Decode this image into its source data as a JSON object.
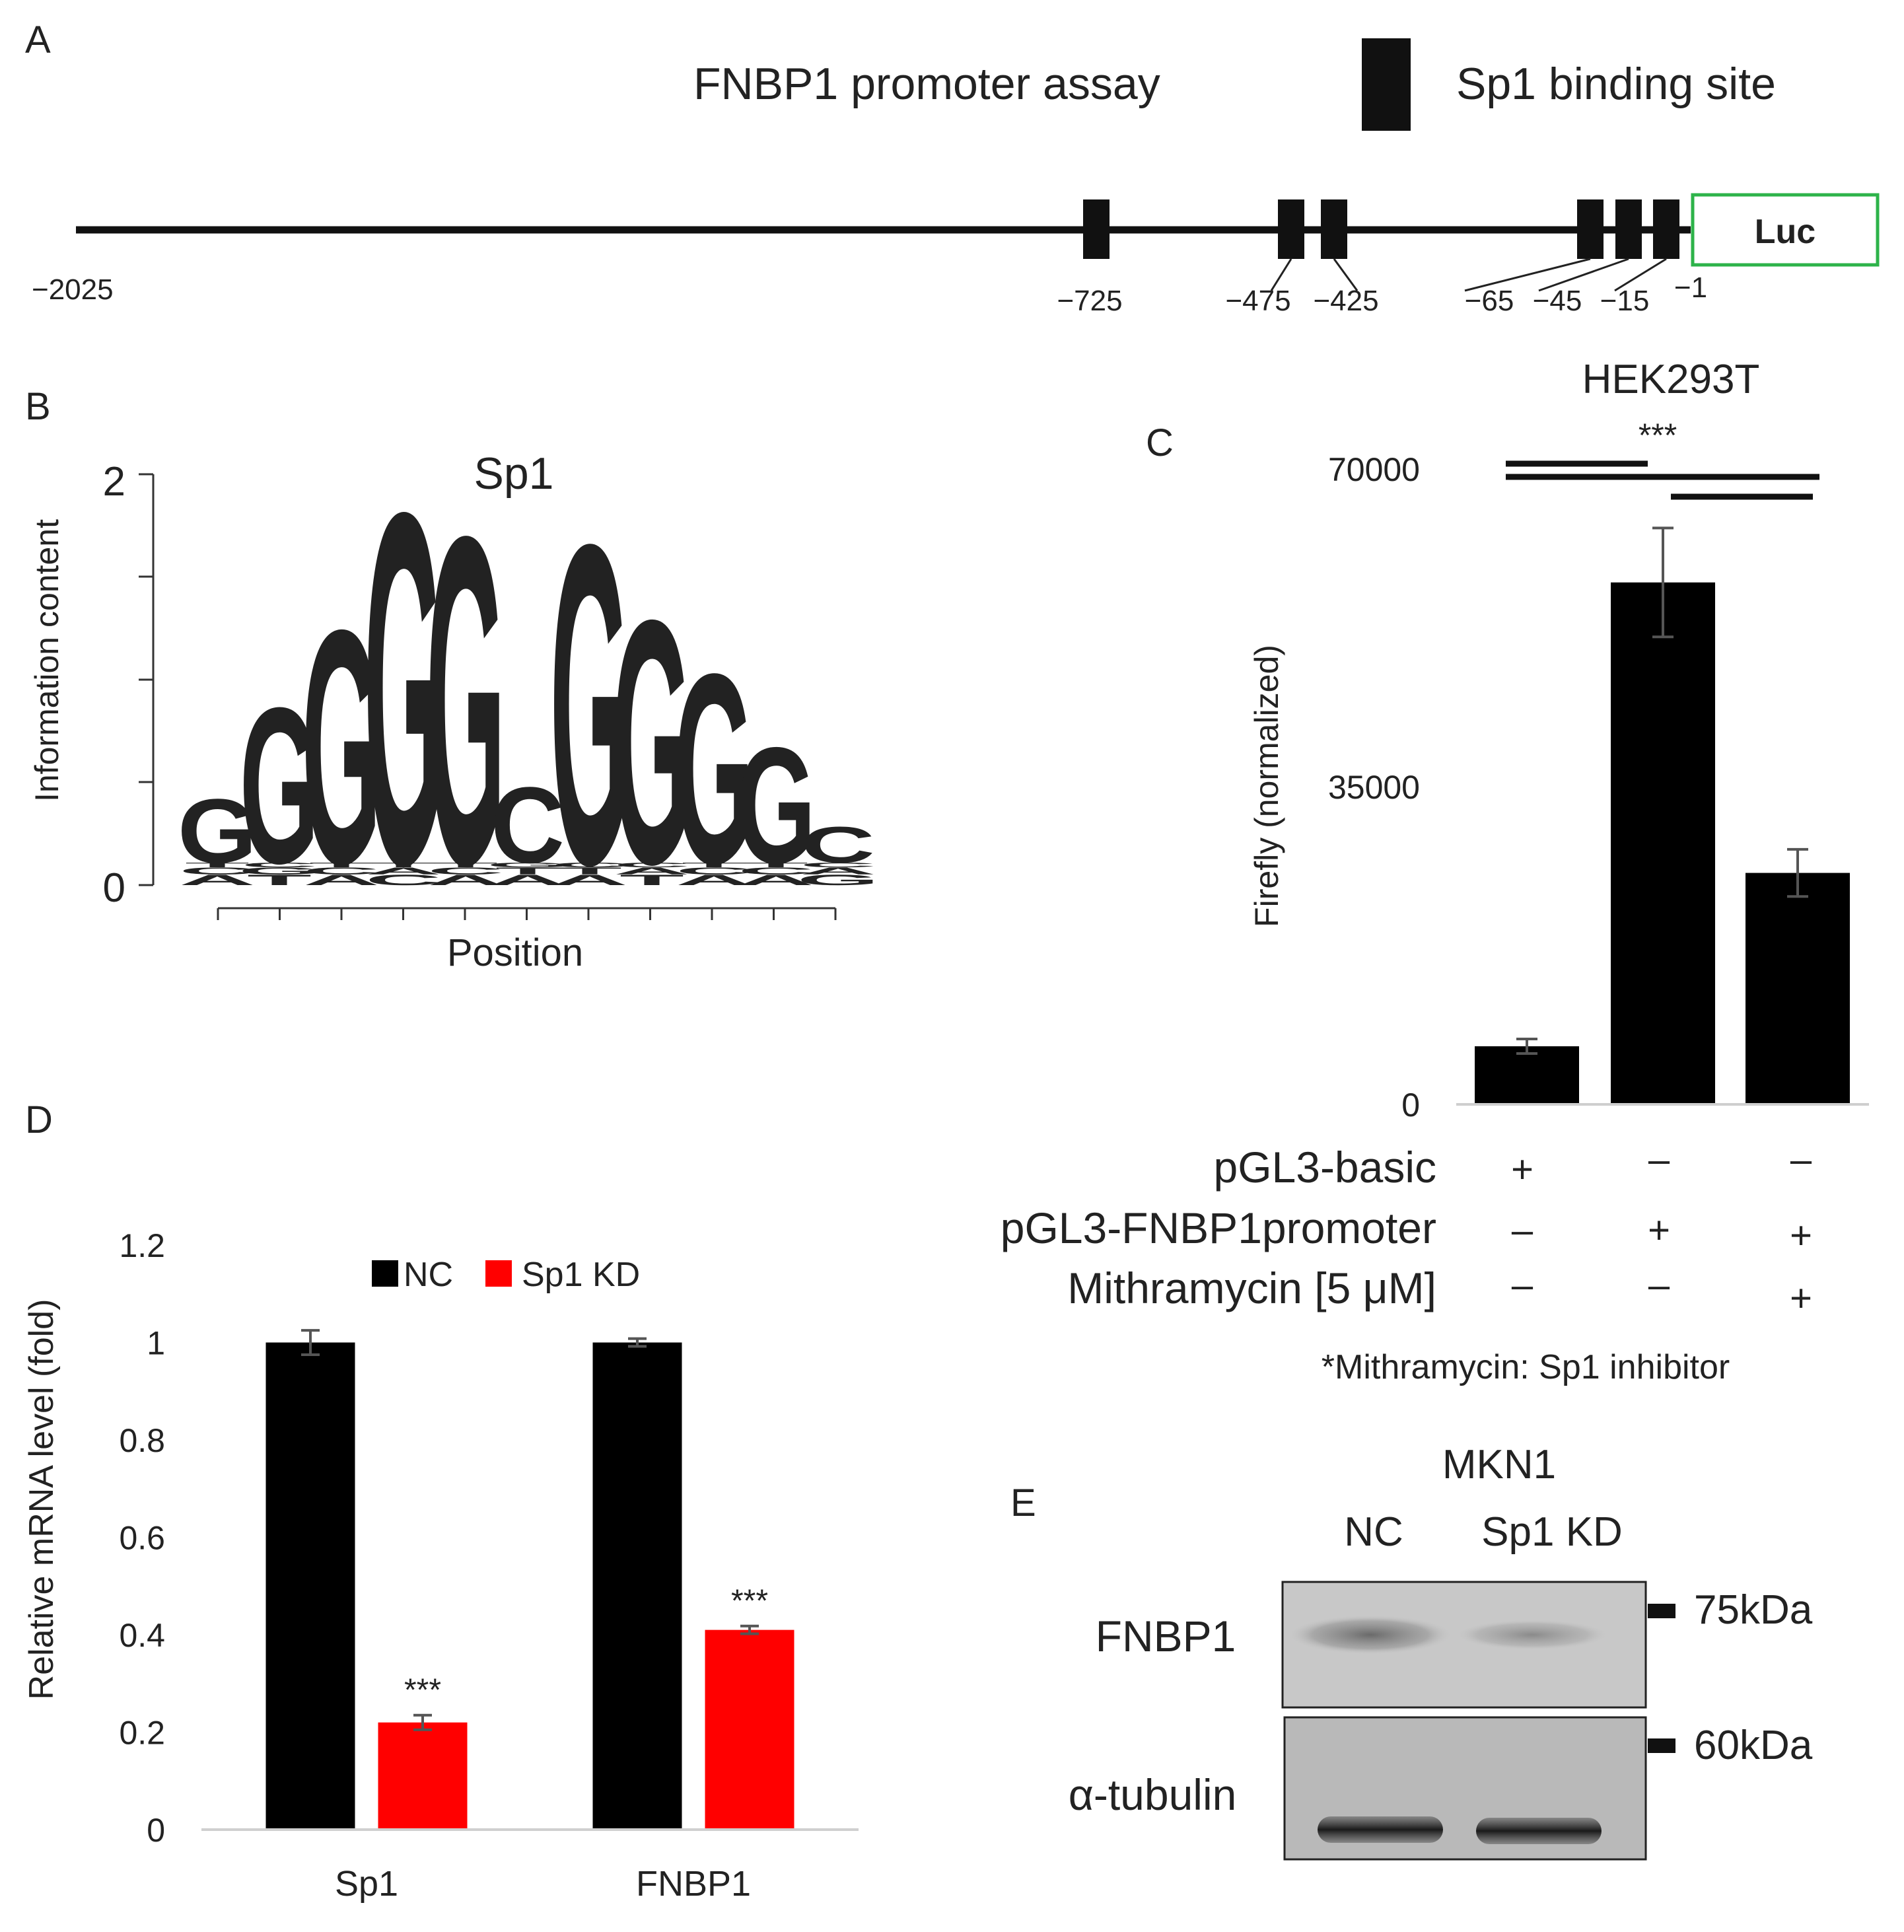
{
  "panelA": {
    "letter": "A",
    "title": "FNBP1 promoter assay",
    "legend_label": "Sp1 binding site",
    "reporter_label": "Luc",
    "colors": {
      "line": "#111111",
      "site": "#111111",
      "luc_border": "#2db34a"
    },
    "positions": [
      "−2025",
      "−725",
      "−475",
      "−425",
      "−65",
      "−45",
      "−15",
      "−1"
    ]
  },
  "panelB": {
    "letter": "B",
    "title": "Sp1",
    "ylabel": "Information content",
    "xlabel": "Position",
    "ymax_label": "2",
    "ymin_label": "0",
    "colors": {
      "G": "#f5a10a",
      "C": "#1515d8",
      "A": "#1ec41e",
      "T": "#e21818"
    },
    "consensus": [
      "G",
      "G",
      "G",
      "G",
      "G",
      "C",
      "G",
      "G",
      "G",
      "G",
      "C"
    ],
    "letter_heights": [
      0.32,
      0.78,
      1.17,
      1.76,
      1.64,
      0.38,
      1.6,
      1.22,
      0.95,
      0.58,
      0.18
    ]
  },
  "panelC": {
    "letter": "C",
    "cell_line": "HEK293T",
    "significance": "***",
    "note": "*Mithramycin: Sp1 inhibitor",
    "rows": [
      {
        "label": "pGL3-basic",
        "marks": [
          "+",
          "–",
          "–"
        ]
      },
      {
        "label": "pGL3-FNBP1promoter",
        "marks": [
          "–",
          "+",
          "+"
        ]
      },
      {
        "label": "Mithramycin [5 μM]",
        "marks": [
          "–",
          "–",
          "+"
        ]
      }
    ]
  },
  "panelD": {
    "letter": "D"
  },
  "panelE": {
    "letter": "E",
    "cell_line": "MKN1",
    "lanes": [
      "NC",
      "Sp1 KD"
    ],
    "rows": [
      {
        "protein": "FNBP1",
        "marker": "75kDa"
      },
      {
        "protein": "α-tubulin",
        "marker": "60kDa"
      }
    ]
  },
  "chart_data": [
    {
      "panel": "C",
      "type": "bar",
      "title": "HEK293T",
      "ylabel": "Firefly (normalized)",
      "xlabel": "",
      "categories": [
        "pGL3-basic",
        "pGL3-FNBP1promoter",
        "pGL3-FNBP1promoter + Mithramycin"
      ],
      "values": [
        6400,
        57500,
        25500
      ],
      "errors": [
        800,
        6000,
        2600
      ],
      "ylim": [
        0,
        70000
      ],
      "yticks": [
        0,
        35000,
        70000
      ],
      "ytick_labels": [
        "0",
        "35000",
        "70000"
      ],
      "bar_color": "#000000",
      "grid": false
    },
    {
      "panel": "D",
      "type": "bar",
      "title": "",
      "ylabel": "Relative mRNA level (fold)",
      "xlabel": "",
      "categories": [
        "Sp1",
        "FNBP1"
      ],
      "series": [
        {
          "name": "NC",
          "values": [
            1.0,
            1.0
          ],
          "errors": [
            0.025,
            0.008
          ],
          "color": "#000000"
        },
        {
          "name": "Sp1 KD",
          "values": [
            0.22,
            0.41
          ],
          "errors": [
            0.015,
            0.008
          ],
          "color": "#ff0000"
        }
      ],
      "annotations": [
        "",
        "***",
        "",
        "***"
      ],
      "ylim": [
        0,
        1.2
      ],
      "yticks": [
        0,
        0.2,
        0.4,
        0.6,
        0.8,
        1,
        1.2
      ],
      "ytick_labels": [
        "0",
        "0.2",
        "0.4",
        "0.6",
        "0.8",
        "1",
        "1.2"
      ],
      "legend": "top",
      "grid": false
    }
  ]
}
